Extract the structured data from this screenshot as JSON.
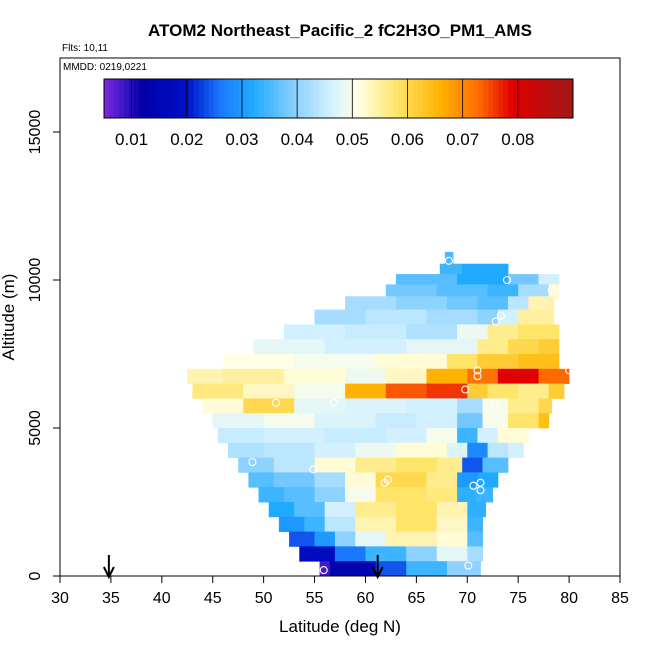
{
  "chart_data": {
    "type": "heatmap",
    "title": "ATOM2 Northeast_Pacific_2 fC2H3O_PM1_AMS",
    "flights_note": "Flts: 10,11",
    "dates_note": "MMDD: 0219,0221",
    "xlabel": "Latitude (deg N)",
    "ylabel": "Altitude (m)",
    "xlim": [
      30,
      85
    ],
    "ylim": [
      0,
      17500
    ],
    "xticks": [
      "30",
      "35",
      "40",
      "45",
      "50",
      "55",
      "60",
      "65",
      "70",
      "75",
      "80",
      "85"
    ],
    "yticks": [
      "0",
      "5000",
      "10000",
      "15000"
    ],
    "ytick_values": [
      0,
      5000,
      10000,
      15000
    ],
    "colorbar": {
      "range": [
        0.005,
        0.09
      ],
      "ticks": [
        "0.01",
        "0.02",
        "0.03",
        "0.04",
        "0.05",
        "0.06",
        "0.07",
        "0.08"
      ],
      "tick_values": [
        0.01,
        0.02,
        0.03,
        0.04,
        0.05,
        0.06,
        0.07,
        0.08
      ],
      "stops": [
        {
          "v": 0.005,
          "color": "#7b2be0"
        },
        {
          "v": 0.012,
          "color": "#0000a8"
        },
        {
          "v": 0.02,
          "color": "#0010c8"
        },
        {
          "v": 0.026,
          "color": "#1a78ff"
        },
        {
          "v": 0.032,
          "color": "#20aaff"
        },
        {
          "v": 0.04,
          "color": "#8ed2ff"
        },
        {
          "v": 0.046,
          "color": "#d2f0ff"
        },
        {
          "v": 0.051,
          "color": "#ffffe6"
        },
        {
          "v": 0.058,
          "color": "#ffe46a"
        },
        {
          "v": 0.066,
          "color": "#ffb300"
        },
        {
          "v": 0.073,
          "color": "#ff6a00"
        },
        {
          "v": 0.079,
          "color": "#e00000"
        },
        {
          "v": 0.09,
          "color": "#a01818"
        }
      ]
    },
    "arrows_latitude": [
      34.8,
      61.2
    ],
    "rows": [
      {
        "alt": 10700,
        "segs": [
          [
            67.8,
            68.6,
            0.035
          ]
        ]
      },
      {
        "alt": 10300,
        "segs": [
          [
            67.3,
            69.5,
            0.034
          ],
          [
            69.5,
            74,
            0.032
          ]
        ]
      },
      {
        "alt": 9950,
        "segs": [
          [
            63,
            69,
            0.036
          ],
          [
            69,
            74,
            0.032
          ],
          [
            74,
            77,
            0.038
          ],
          [
            77,
            79,
            0.046
          ]
        ]
      },
      {
        "alt": 9600,
        "segs": [
          [
            62,
            67,
            0.038
          ],
          [
            67,
            72,
            0.036
          ],
          [
            72,
            75,
            0.034
          ],
          [
            75,
            78,
            0.042
          ],
          [
            78,
            79,
            0.052
          ]
        ]
      },
      {
        "alt": 9200,
        "segs": [
          [
            58,
            63,
            0.042
          ],
          [
            63,
            68,
            0.04
          ],
          [
            68,
            71,
            0.038
          ],
          [
            71,
            74,
            0.036
          ],
          [
            74,
            76,
            0.044
          ],
          [
            76,
            78.5,
            0.054
          ]
        ]
      },
      {
        "alt": 8750,
        "segs": [
          [
            55,
            60,
            0.042
          ],
          [
            60,
            66,
            0.044
          ],
          [
            66,
            71,
            0.042
          ],
          [
            71,
            73,
            0.04
          ],
          [
            73,
            75,
            0.046
          ],
          [
            75,
            78.5,
            0.055
          ]
        ]
      },
      {
        "alt": 8250,
        "segs": [
          [
            52,
            58,
            0.046
          ],
          [
            58,
            64,
            0.045
          ],
          [
            64,
            69,
            0.043
          ],
          [
            69,
            72,
            0.049
          ],
          [
            72,
            75,
            0.056
          ],
          [
            75,
            79,
            0.058
          ]
        ]
      },
      {
        "alt": 7750,
        "segs": [
          [
            49,
            56,
            0.048
          ],
          [
            56,
            64,
            0.046
          ],
          [
            64,
            71,
            0.048
          ],
          [
            71,
            74,
            0.056
          ],
          [
            74,
            77,
            0.06
          ],
          [
            77,
            79,
            0.062
          ]
        ]
      },
      {
        "alt": 7250,
        "segs": [
          [
            46,
            53,
            0.051
          ],
          [
            53,
            61,
            0.05
          ],
          [
            61,
            68,
            0.052
          ],
          [
            68,
            71,
            0.058
          ],
          [
            71,
            75,
            0.062
          ],
          [
            75,
            79,
            0.064
          ]
        ]
      },
      {
        "alt": 6750,
        "segs": [
          [
            42.5,
            46,
            0.054
          ],
          [
            46,
            52,
            0.055
          ],
          [
            52,
            58,
            0.052
          ],
          [
            58,
            62,
            0.049
          ],
          [
            62,
            66,
            0.053
          ],
          [
            66,
            70,
            0.066
          ],
          [
            70,
            73,
            0.072
          ],
          [
            73,
            77,
            0.079
          ],
          [
            77,
            80,
            0.073
          ]
        ]
      },
      {
        "alt": 6250,
        "segs": [
          [
            43,
            48,
            0.057
          ],
          [
            48,
            53,
            0.053
          ],
          [
            53,
            58,
            0.05
          ],
          [
            58,
            62,
            0.066
          ],
          [
            62,
            66,
            0.074
          ],
          [
            66,
            70,
            0.076
          ],
          [
            70,
            72,
            0.062
          ],
          [
            72,
            75,
            0.058
          ],
          [
            75,
            78,
            0.056
          ],
          [
            78,
            79.5,
            0.062
          ]
        ]
      },
      {
        "alt": 5750,
        "segs": [
          [
            44,
            48,
            0.052
          ],
          [
            48,
            53,
            0.06
          ],
          [
            53,
            58,
            0.048
          ],
          [
            58,
            64,
            0.047
          ],
          [
            64,
            69,
            0.046
          ],
          [
            69,
            71.5,
            0.042
          ],
          [
            71.5,
            74,
            0.05
          ],
          [
            74,
            77,
            0.056
          ],
          [
            77,
            78.3,
            0.06
          ]
        ]
      },
      {
        "alt": 5250,
        "segs": [
          [
            45,
            50,
            0.048
          ],
          [
            50,
            55,
            0.05
          ],
          [
            55,
            61,
            0.047
          ],
          [
            61,
            65,
            0.045
          ],
          [
            65,
            69,
            0.046
          ],
          [
            69,
            71.5,
            0.038
          ],
          [
            71.5,
            74,
            0.05
          ],
          [
            74,
            77,
            0.058
          ],
          [
            77,
            78,
            0.064
          ]
        ]
      },
      {
        "alt": 4750,
        "segs": [
          [
            45.5,
            50,
            0.045
          ],
          [
            50,
            56,
            0.046
          ],
          [
            56,
            62,
            0.045
          ],
          [
            62,
            66,
            0.046
          ],
          [
            66,
            69,
            0.05
          ],
          [
            69,
            71,
            0.034
          ],
          [
            71,
            73,
            0.046
          ],
          [
            73,
            76,
            0.052
          ]
        ]
      },
      {
        "alt": 4250,
        "segs": [
          [
            46.5,
            50,
            0.043
          ],
          [
            50,
            55,
            0.044
          ],
          [
            55,
            59,
            0.046
          ],
          [
            59,
            63,
            0.049
          ],
          [
            63,
            68,
            0.052
          ],
          [
            68,
            70,
            0.047
          ],
          [
            70,
            72,
            0.028
          ],
          [
            72,
            74,
            0.044
          ],
          [
            74,
            75.5,
            0.046
          ]
        ]
      },
      {
        "alt": 3750,
        "segs": [
          [
            47.5,
            51,
            0.04
          ],
          [
            51,
            55,
            0.044
          ],
          [
            55,
            59,
            0.052
          ],
          [
            59,
            63,
            0.056
          ],
          [
            63,
            67,
            0.058
          ],
          [
            67,
            69.5,
            0.056
          ],
          [
            69.5,
            71.5,
            0.024
          ],
          [
            71.5,
            74,
            0.036
          ]
        ]
      },
      {
        "alt": 3250,
        "segs": [
          [
            48.5,
            51,
            0.036
          ],
          [
            51,
            55,
            0.038
          ],
          [
            55,
            58,
            0.042
          ],
          [
            58,
            61,
            0.052
          ],
          [
            61,
            66,
            0.06
          ],
          [
            66,
            69,
            0.056
          ],
          [
            69,
            71,
            0.03
          ],
          [
            71,
            73,
            0.032
          ]
        ]
      },
      {
        "alt": 2750,
        "segs": [
          [
            49.5,
            52,
            0.034
          ],
          [
            52,
            55,
            0.036
          ],
          [
            55,
            58,
            0.04
          ],
          [
            58,
            61,
            0.05
          ],
          [
            61,
            66,
            0.058
          ],
          [
            66,
            69,
            0.057
          ],
          [
            69,
            70.8,
            0.033
          ],
          [
            70.8,
            72.5,
            0.034
          ]
        ]
      },
      {
        "alt": 2250,
        "segs": [
          [
            50.5,
            53,
            0.032
          ],
          [
            53,
            56,
            0.036
          ],
          [
            56,
            59,
            0.046
          ],
          [
            59,
            63,
            0.056
          ],
          [
            63,
            67,
            0.058
          ],
          [
            67,
            70,
            0.054
          ],
          [
            70,
            71.8,
            0.033
          ]
        ]
      },
      {
        "alt": 1750,
        "segs": [
          [
            51.5,
            54,
            0.03
          ],
          [
            54,
            56,
            0.034
          ],
          [
            56,
            59,
            0.044
          ],
          [
            59,
            63,
            0.054
          ],
          [
            63,
            67,
            0.058
          ],
          [
            67,
            70,
            0.053
          ],
          [
            70,
            71.5,
            0.034
          ]
        ]
      },
      {
        "alt": 1250,
        "segs": [
          [
            52.5,
            55,
            0.024
          ],
          [
            55,
            57,
            0.03
          ],
          [
            57,
            59,
            0.04
          ],
          [
            59,
            62,
            0.048
          ],
          [
            62,
            67,
            0.054
          ],
          [
            67,
            70,
            0.052
          ],
          [
            70,
            71.5,
            0.036
          ]
        ]
      },
      {
        "alt": 750,
        "segs": [
          [
            53.5,
            57,
            0.018
          ],
          [
            57,
            60,
            0.026
          ],
          [
            60,
            64,
            0.034
          ],
          [
            64,
            67,
            0.04
          ],
          [
            67,
            70,
            0.048
          ],
          [
            70,
            71.5,
            0.042
          ]
        ]
      },
      {
        "alt": 250,
        "segs": [
          [
            55.5,
            56.5,
            0.008
          ],
          [
            56.5,
            61,
            0.014
          ],
          [
            61,
            64,
            0.024
          ],
          [
            64,
            68,
            0.034
          ],
          [
            68,
            71.3,
            0.04
          ]
        ]
      }
    ],
    "markers": [
      [
        68.2,
        10650
      ],
      [
        73.9,
        10000
      ],
      [
        78.3,
        9650
      ],
      [
        73.3,
        8800
      ],
      [
        72.8,
        8600
      ],
      [
        71.0,
        6950
      ],
      [
        71.0,
        6750
      ],
      [
        80.0,
        6950
      ],
      [
        69.8,
        6300
      ],
      [
        51.2,
        5850
      ],
      [
        56.9,
        5850
      ],
      [
        72.7,
        5850
      ],
      [
        48.9,
        3850
      ],
      [
        54.9,
        3600
      ],
      [
        62.2,
        3250
      ],
      [
        61.9,
        3150
      ],
      [
        71.3,
        3150
      ],
      [
        70.6,
        3050
      ],
      [
        71.3,
        2900
      ],
      [
        70.1,
        350
      ],
      [
        55.9,
        200
      ]
    ]
  }
}
